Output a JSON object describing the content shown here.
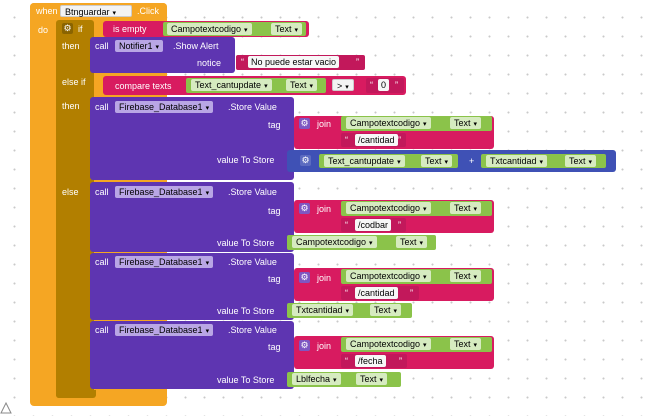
{
  "event": {
    "when_label": "when",
    "component": "Btnguardar",
    "event_name": ".Click",
    "do_label": "do"
  },
  "if_block": {
    "if_label": "if",
    "then_label": "then",
    "elseif_label": "else if",
    "else_label": "else"
  },
  "cond1": {
    "is_empty": "is empty",
    "comp": "Campotextcodigo",
    "prop": "Text"
  },
  "alert": {
    "call_label": "call",
    "component": "Notifier1",
    "method": ".Show Alert",
    "notice_label": "notice",
    "notice_value": "No puede estar vacio"
  },
  "cond2": {
    "compare": "compare texts",
    "comp": "Text_cantupdate",
    "prop": "Text",
    "op": ">",
    "value": "0"
  },
  "store1": {
    "call_label": "call",
    "component": "Firebase_Database1",
    "method": ".Store Value",
    "tag_label": "tag",
    "join_label": "join",
    "tag_comp": "Campotextcodigo",
    "tag_prop": "Text",
    "tag_str": "/cantidad",
    "value_label": "value To Store",
    "add_comp1": "Text_cantupdate",
    "add_prop1": "Text",
    "plus": "+",
    "add_comp2": "Txtcantidad",
    "add_prop2": "Text"
  },
  "store2": {
    "call_label": "call",
    "component": "Firebase_Database1",
    "method": ".Store Value",
    "tag_label": "tag",
    "join_label": "join",
    "tag_comp": "Campotextcodigo",
    "tag_prop": "Text",
    "tag_str": "/codbar",
    "value_label": "value To Store",
    "val_comp": "Campotextcodigo",
    "val_prop": "Text"
  },
  "store3": {
    "call_label": "call",
    "component": "Firebase_Database1",
    "method": ".Store Value",
    "tag_label": "tag",
    "join_label": "join",
    "tag_comp": "Campotextcodigo",
    "tag_prop": "Text",
    "tag_str": "/cantidad",
    "value_label": "value To Store",
    "val_comp": "Txtcantidad",
    "val_prop": "Text"
  },
  "store4": {
    "call_label": "call",
    "component": "Firebase_Database1",
    "method": ".Store Value",
    "tag_label": "tag",
    "join_label": "join",
    "tag_comp": "Campotextcodigo",
    "tag_prop": "Text",
    "tag_str": "/fecha",
    "value_label": "value To Store",
    "val_comp": "Lblfecha",
    "val_prop": "Text"
  },
  "arrow": "▾",
  "gear_icon": "⚙",
  "quote_open": "“",
  "quote_close": "”"
}
